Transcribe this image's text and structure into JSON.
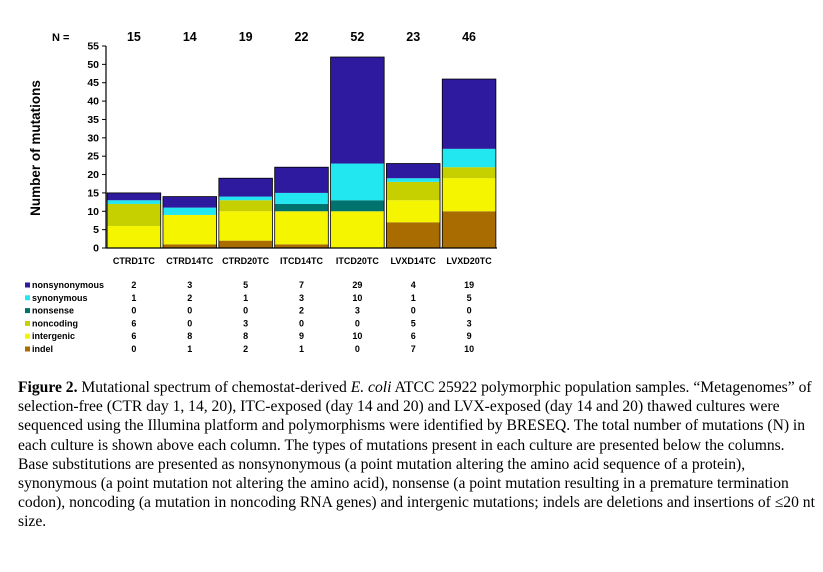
{
  "chart_data": {
    "type": "bar",
    "stacked": true,
    "ylabel": "Number of mutations",
    "ylim": [
      0,
      55
    ],
    "yticks": [
      0,
      5,
      10,
      15,
      20,
      25,
      30,
      35,
      40,
      45,
      50,
      55
    ],
    "n_label": "N =",
    "categories": [
      "CTRD1TC",
      "CTRD14TC",
      "CTRD20TC",
      "ITCD14TC",
      "ITCD20TC",
      "LVXD14TC",
      "LVXD20TC"
    ],
    "totals": [
      15,
      14,
      19,
      22,
      52,
      23,
      46
    ],
    "series": [
      {
        "name": "nonsynonymous",
        "color": "#2e1a9e",
        "values": [
          2,
          3,
          5,
          7,
          29,
          4,
          19
        ]
      },
      {
        "name": "synonymous",
        "color": "#22e6f0",
        "values": [
          1,
          2,
          1,
          3,
          10,
          1,
          5
        ]
      },
      {
        "name": "nonsense",
        "color": "#00736e",
        "values": [
          0,
          0,
          0,
          2,
          3,
          0,
          0
        ]
      },
      {
        "name": "noncoding",
        "color": "#c6d000",
        "values": [
          6,
          0,
          3,
          0,
          0,
          5,
          3
        ]
      },
      {
        "name": "intergenic",
        "color": "#f6f500",
        "values": [
          6,
          8,
          8,
          9,
          10,
          6,
          9
        ]
      },
      {
        "name": "indel",
        "color": "#a86c00",
        "values": [
          0,
          1,
          2,
          1,
          0,
          7,
          10
        ]
      }
    ],
    "stack_order": [
      "indel",
      "intergenic",
      "noncoding",
      "nonsense",
      "synonymous",
      "nonsynonymous"
    ],
    "legend": "table-below"
  },
  "caption": {
    "label": "Figure 2.",
    "text_before_italic": " Mutational spectrum of chemostat-derived ",
    "italic": "E. coli",
    "text_after_italic": " ATCC 25922 polymorphic population samples. “Metagenomes” of selection-free (CTR day 1, 14, 20), ITC-exposed (day 14 and 20) and LVX-exposed (day 14 and 20) thawed cultures were sequenced using the Illumina platform and polymorphisms were identified by BRESEQ. The total number of mutations (N) in each culture is shown above each column. The types of mutations present in each culture are presented below the columns. Base substitutions are presented as nonsynonymous (a point mutation altering the amino acid sequence of a protein), synonymous (a point mutation not altering the amino acid), nonsense (a point mutation resulting in a premature termination codon), noncoding (a mutation in noncoding RNA genes) and intergenic mutations; indels are deletions and insertions of ≤20 nt size."
  }
}
